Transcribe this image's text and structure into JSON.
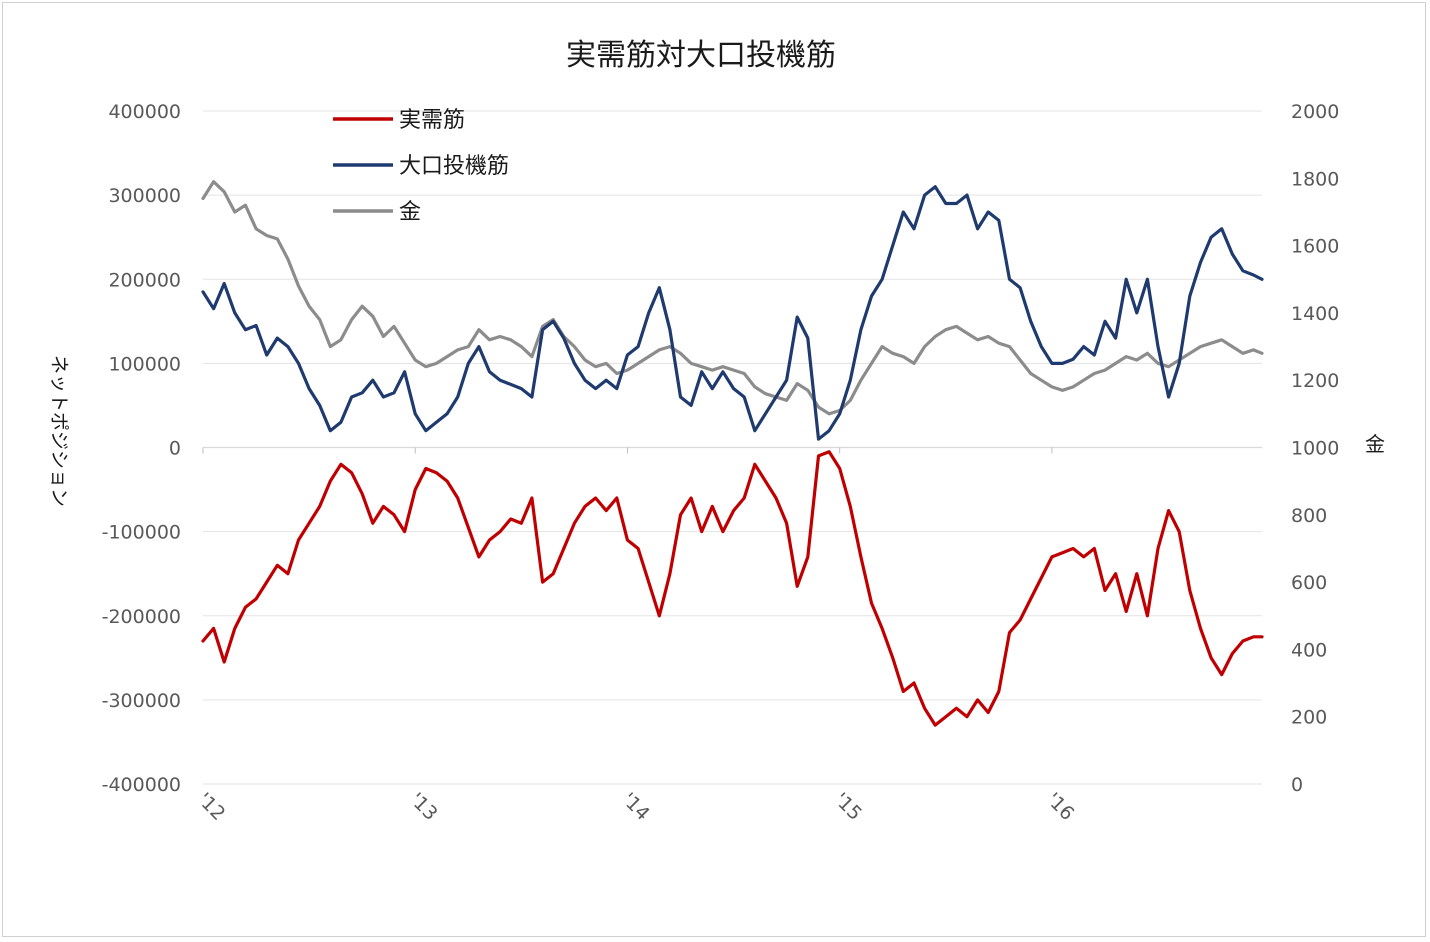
{
  "chart_data": {
    "type": "line",
    "title": "実需筋対大口投機筋",
    "y_left_label": "ネットポジション",
    "y_right_label": "金",
    "y_left_range": [
      -400000,
      400000
    ],
    "y_right_range": [
      0,
      2000
    ],
    "y_left_ticks": [
      "400000",
      "300000",
      "200000",
      "100000",
      "0",
      "-100000",
      "-200000",
      "-300000",
      "-400000"
    ],
    "y_right_ticks": [
      "2000",
      "1800",
      "1600",
      "1400",
      "1200",
      "1000",
      "800",
      "600",
      "400",
      "200",
      "0"
    ],
    "x_ticks": [
      "'12",
      "'13",
      "'14",
      "'15",
      "'16"
    ],
    "x_range": [
      2012.0,
      2016.99
    ],
    "legend_position": "top-left",
    "legend": [
      "実需筋",
      "大口投機筋",
      "金"
    ],
    "colors": {
      "commercial": "#c00000",
      "speculator": "#1f3a6e",
      "gold": "#8c8c8c"
    },
    "series": [
      {
        "name": "実需筋",
        "axis": "left",
        "x": [
          2012.0,
          2012.05,
          2012.1,
          2012.15,
          2012.2,
          2012.25,
          2012.3,
          2012.35,
          2012.4,
          2012.45,
          2012.5,
          2012.55,
          2012.6,
          2012.65,
          2012.7,
          2012.75,
          2012.8,
          2012.85,
          2012.9,
          2012.95,
          2013.0,
          2013.05,
          2013.1,
          2013.15,
          2013.2,
          2013.25,
          2013.3,
          2013.35,
          2013.4,
          2013.45,
          2013.5,
          2013.55,
          2013.6,
          2013.65,
          2013.7,
          2013.75,
          2013.8,
          2013.85,
          2013.9,
          2013.95,
          2014.0,
          2014.05,
          2014.1,
          2014.15,
          2014.2,
          2014.25,
          2014.3,
          2014.35,
          2014.4,
          2014.45,
          2014.5,
          2014.55,
          2014.6,
          2014.65,
          2014.7,
          2014.75,
          2014.8,
          2014.85,
          2014.9,
          2014.95,
          2015.0,
          2015.05,
          2015.1,
          2015.15,
          2015.2,
          2015.25,
          2015.3,
          2015.35,
          2015.4,
          2015.45,
          2015.5,
          2015.55,
          2015.6,
          2015.65,
          2015.7,
          2015.75,
          2015.8,
          2015.85,
          2015.9,
          2015.95,
          2016.0,
          2016.05,
          2016.1,
          2016.15,
          2016.2,
          2016.25,
          2016.3,
          2016.35,
          2016.4,
          2016.45,
          2016.5,
          2016.55,
          2016.6,
          2016.65,
          2016.7,
          2016.75,
          2016.8,
          2016.85,
          2016.9,
          2016.95,
          2016.99
        ],
        "values": [
          -230000,
          -215000,
          -255000,
          -215000,
          -190000,
          -180000,
          -160000,
          -140000,
          -150000,
          -110000,
          -90000,
          -70000,
          -40000,
          -20000,
          -30000,
          -55000,
          -90000,
          -70000,
          -80000,
          -100000,
          -50000,
          -25000,
          -30000,
          -40000,
          -60000,
          -95000,
          -130000,
          -110000,
          -100000,
          -85000,
          -90000,
          -60000,
          -160000,
          -150000,
          -120000,
          -90000,
          -70000,
          -60000,
          -75000,
          -60000,
          -110000,
          -120000,
          -160000,
          -200000,
          -150000,
          -80000,
          -60000,
          -100000,
          -70000,
          -100000,
          -75000,
          -60000,
          -20000,
          -40000,
          -60000,
          -90000,
          -165000,
          -130000,
          -10000,
          -5000,
          -25000,
          -70000,
          -130000,
          -185000,
          -215000,
          -250000,
          -290000,
          -280000,
          -310000,
          -330000,
          -320000,
          -310000,
          -320000,
          -300000,
          -315000,
          -290000,
          -220000,
          -205000,
          -180000,
          -155000,
          -130000,
          -125000,
          -120000,
          -130000,
          -120000,
          -170000,
          -150000,
          -195000,
          -150000,
          -200000,
          -120000,
          -75000,
          -100000,
          -170000,
          -215000,
          -250000,
          -270000,
          -245000,
          -230000,
          -225000,
          -225000
        ]
      },
      {
        "name": "大口投機筋",
        "axis": "left",
        "x": [
          2012.0,
          2012.05,
          2012.1,
          2012.15,
          2012.2,
          2012.25,
          2012.3,
          2012.35,
          2012.4,
          2012.45,
          2012.5,
          2012.55,
          2012.6,
          2012.65,
          2012.7,
          2012.75,
          2012.8,
          2012.85,
          2012.9,
          2012.95,
          2013.0,
          2013.05,
          2013.1,
          2013.15,
          2013.2,
          2013.25,
          2013.3,
          2013.35,
          2013.4,
          2013.45,
          2013.5,
          2013.55,
          2013.6,
          2013.65,
          2013.7,
          2013.75,
          2013.8,
          2013.85,
          2013.9,
          2013.95,
          2014.0,
          2014.05,
          2014.1,
          2014.15,
          2014.2,
          2014.25,
          2014.3,
          2014.35,
          2014.4,
          2014.45,
          2014.5,
          2014.55,
          2014.6,
          2014.65,
          2014.7,
          2014.75,
          2014.8,
          2014.85,
          2014.9,
          2014.95,
          2015.0,
          2015.05,
          2015.1,
          2015.15,
          2015.2,
          2015.25,
          2015.3,
          2015.35,
          2015.4,
          2015.45,
          2015.5,
          2015.55,
          2015.6,
          2015.65,
          2015.7,
          2015.75,
          2015.8,
          2015.85,
          2015.9,
          2015.95,
          2016.0,
          2016.05,
          2016.1,
          2016.15,
          2016.2,
          2016.25,
          2016.3,
          2016.35,
          2016.4,
          2016.45,
          2016.5,
          2016.55,
          2016.6,
          2016.65,
          2016.7,
          2016.75,
          2016.8,
          2016.85,
          2016.9,
          2016.95,
          2016.99
        ],
        "values": [
          185000,
          165000,
          195000,
          160000,
          140000,
          145000,
          110000,
          130000,
          120000,
          100000,
          70000,
          50000,
          20000,
          30000,
          60000,
          65000,
          80000,
          60000,
          65000,
          90000,
          40000,
          20000,
          30000,
          40000,
          60000,
          100000,
          120000,
          90000,
          80000,
          75000,
          70000,
          60000,
          140000,
          150000,
          130000,
          100000,
          80000,
          70000,
          80000,
          70000,
          110000,
          120000,
          160000,
          190000,
          140000,
          60000,
          50000,
          90000,
          70000,
          90000,
          70000,
          60000,
          20000,
          40000,
          60000,
          80000,
          155000,
          130000,
          10000,
          20000,
          40000,
          80000,
          140000,
          180000,
          200000,
          240000,
          280000,
          260000,
          300000,
          310000,
          290000,
          290000,
          300000,
          260000,
          280000,
          270000,
          200000,
          190000,
          150000,
          120000,
          100000,
          100000,
          105000,
          120000,
          110000,
          150000,
          130000,
          200000,
          160000,
          200000,
          120000,
          60000,
          100000,
          180000,
          220000,
          250000,
          260000,
          230000,
          210000,
          205000,
          200000
        ]
      },
      {
        "name": "金",
        "axis": "right",
        "x": [
          2012.0,
          2012.05,
          2012.1,
          2012.15,
          2012.2,
          2012.25,
          2012.3,
          2012.35,
          2012.4,
          2012.45,
          2012.5,
          2012.55,
          2012.6,
          2012.65,
          2012.7,
          2012.75,
          2012.8,
          2012.85,
          2012.9,
          2012.95,
          2013.0,
          2013.05,
          2013.1,
          2013.15,
          2013.2,
          2013.25,
          2013.3,
          2013.35,
          2013.4,
          2013.45,
          2013.5,
          2013.55,
          2013.6,
          2013.65,
          2013.7,
          2013.75,
          2013.8,
          2013.85,
          2013.9,
          2013.95,
          2014.0,
          2014.05,
          2014.1,
          2014.15,
          2014.2,
          2014.25,
          2014.3,
          2014.35,
          2014.4,
          2014.45,
          2014.5,
          2014.55,
          2014.6,
          2014.65,
          2014.7,
          2014.75,
          2014.8,
          2014.85,
          2014.9,
          2014.95,
          2015.0,
          2015.05,
          2015.1,
          2015.15,
          2015.2,
          2015.25,
          2015.3,
          2015.35,
          2015.4,
          2015.45,
          2015.5,
          2015.55,
          2015.6,
          2015.65,
          2015.7,
          2015.75,
          2015.8,
          2015.85,
          2015.9,
          2015.95,
          2016.0,
          2016.05,
          2016.1,
          2016.15,
          2016.2,
          2016.25,
          2016.3,
          2016.35,
          2016.4,
          2016.45,
          2016.5,
          2016.55,
          2016.6,
          2016.65,
          2016.7,
          2016.75,
          2016.8,
          2016.85,
          2016.9,
          2016.95,
          2016.99
        ],
        "values": [
          1740,
          1790,
          1760,
          1700,
          1720,
          1650,
          1630,
          1620,
          1560,
          1480,
          1420,
          1380,
          1300,
          1320,
          1380,
          1420,
          1390,
          1330,
          1360,
          1310,
          1260,
          1240,
          1250,
          1270,
          1290,
          1300,
          1350,
          1320,
          1330,
          1320,
          1300,
          1270,
          1360,
          1380,
          1330,
          1300,
          1260,
          1240,
          1250,
          1220,
          1230,
          1250,
          1270,
          1290,
          1300,
          1280,
          1250,
          1240,
          1230,
          1240,
          1230,
          1220,
          1180,
          1160,
          1150,
          1140,
          1190,
          1170,
          1120,
          1100,
          1110,
          1140,
          1200,
          1250,
          1300,
          1280,
          1270,
          1250,
          1300,
          1330,
          1350,
          1360,
          1340,
          1320,
          1330,
          1310,
          1300,
          1260,
          1220,
          1200,
          1180,
          1170,
          1180,
          1200,
          1220,
          1230,
          1250,
          1270,
          1260,
          1280,
          1250,
          1240,
          1260,
          1280,
          1300,
          1310,
          1320,
          1300,
          1280,
          1290,
          1280
        ]
      }
    ]
  }
}
